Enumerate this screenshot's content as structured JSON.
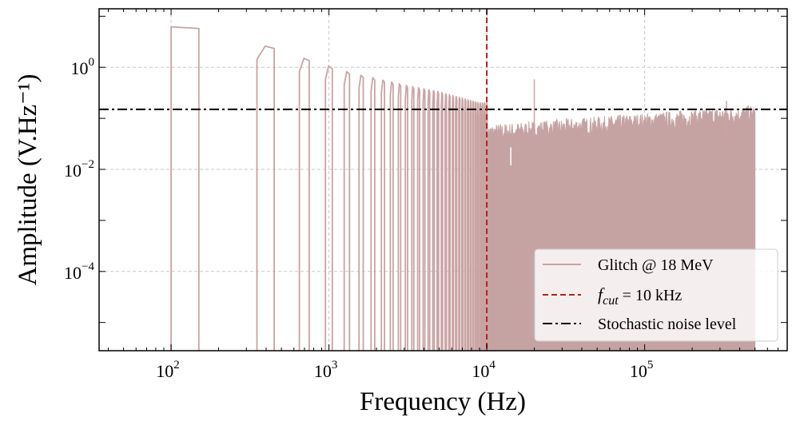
{
  "chart_data": {
    "type": "line",
    "xscale": "log",
    "yscale": "log",
    "xlim": [
      35,
      800000
    ],
    "ylim": [
      2.8e-06,
      14
    ],
    "xlabel": "Frequency (Hz)",
    "ylabel": "Amplitude (V.Hz⁻¹)",
    "x_ticks": [
      {
        "base": "10",
        "exp": "2",
        "value": 100
      },
      {
        "base": "10",
        "exp": "3",
        "value": 1000
      },
      {
        "base": "10",
        "exp": "4",
        "value": 10000
      },
      {
        "base": "10",
        "exp": "5",
        "value": 100000
      }
    ],
    "y_ticks": [
      {
        "base": "10",
        "exp": "0",
        "value": 1
      },
      {
        "base": "10",
        "exp": "−2",
        "value": 0.01
      },
      {
        "base": "10",
        "exp": "−4",
        "value": 0.0001
      }
    ],
    "grid": true,
    "legend_position": "bottom-right",
    "series": [
      {
        "name": "Glitch @ 18 MeV",
        "style": "solid",
        "color": "#c9a3a3",
        "fundamental_hz": 100,
        "first_lobe_width_hz": 50,
        "lobe_peaks": [
          {
            "f": 100,
            "amp": 6.2
          },
          {
            "f": 400,
            "amp": 2.6
          },
          {
            "f": 700,
            "amp": 1.5
          },
          {
            "f": 1000,
            "amp": 1.05
          },
          {
            "f": 1300,
            "amp": 0.82
          },
          {
            "f": 1600,
            "amp": 0.7
          },
          {
            "f": 2000,
            "amp": 0.6
          },
          {
            "f": 3000,
            "amp": 0.45
          },
          {
            "f": 5000,
            "amp": 0.33
          },
          {
            "f": 9000,
            "amp": 0.2
          }
        ],
        "dense_band": {
          "f_start": 10000,
          "f_end": 500000,
          "amp_low": 0.045,
          "amp_high": 0.12
        },
        "spikes": [
          {
            "f": 14200,
            "amp": 0.012
          },
          {
            "f": 20000,
            "amp": 0.58
          },
          {
            "f": 330000,
            "amp": 0.22
          }
        ]
      },
      {
        "name": "f_cut = 10 kHz",
        "legend_label_italic": "f",
        "legend_label_sub": "cut",
        "legend_label_rest": " = 10 kHz",
        "style": "dashed",
        "color": "#b22222",
        "orientation": "vertical",
        "x": 10000
      },
      {
        "name": "Stochastic noise level",
        "style": "dashdot",
        "color": "#000000",
        "orientation": "horizontal",
        "y": 0.15
      }
    ]
  }
}
